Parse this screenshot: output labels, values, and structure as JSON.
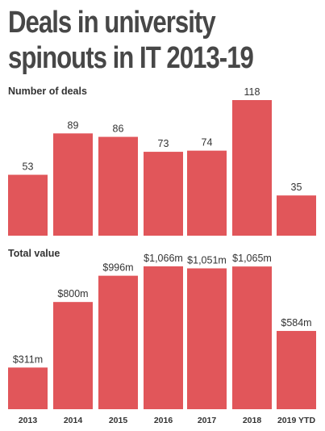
{
  "title_lines": [
    "Deals in university",
    "spinouts in IT 2013-19"
  ],
  "colors": {
    "bar": "#e1565a",
    "title": "#474747",
    "text": "#333333"
  },
  "chart_data": [
    {
      "type": "bar",
      "title": "Number of deals",
      "categories": [
        "2013",
        "2014",
        "2015",
        "2016",
        "2017",
        "2018",
        "2019 YTD"
      ],
      "values": [
        53,
        89,
        86,
        73,
        74,
        118,
        35
      ],
      "value_labels": [
        "53",
        "89",
        "86",
        "73",
        "74",
        "118",
        "35"
      ],
      "ylim": [
        0,
        118
      ],
      "grid": false
    },
    {
      "type": "bar",
      "title": "Total value",
      "categories": [
        "2013",
        "2014",
        "2015",
        "2016",
        "2017",
        "2018",
        "2019 YTD"
      ],
      "values": [
        311,
        800,
        996,
        1066,
        1051,
        1065,
        584
      ],
      "value_labels": [
        "$311m",
        "$800m",
        "$996m",
        "$1,066m",
        "$1,051m",
        "$1,065m",
        "$584m"
      ],
      "ylim": [
        0,
        1066
      ],
      "grid": false
    }
  ]
}
